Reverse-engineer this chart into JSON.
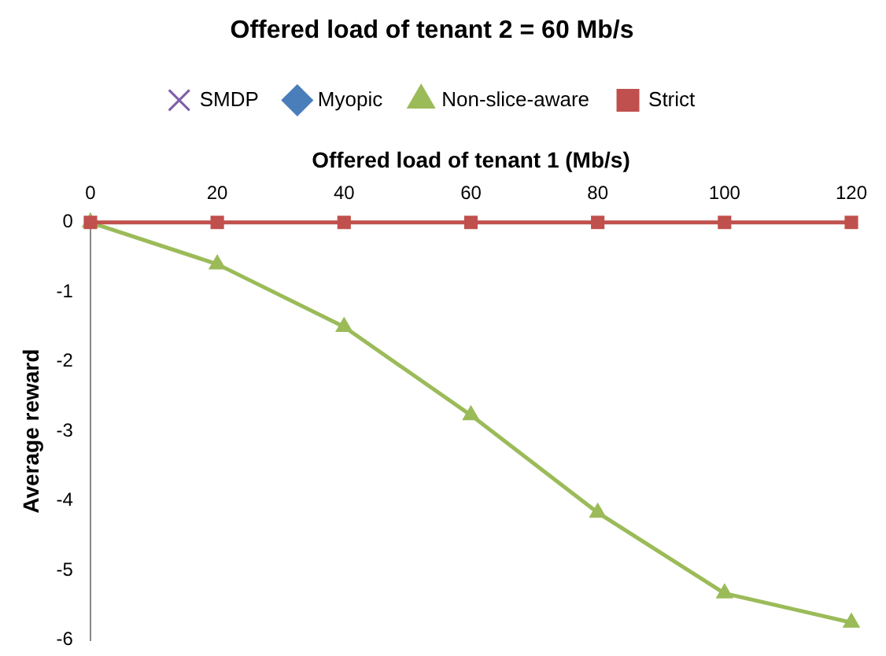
{
  "chart_data": {
    "type": "line",
    "title": "Offered load of tenant 2 = 60 Mb/s",
    "xlabel": "Offered load of tenant 1 (Mb/s)",
    "ylabel": "Average reward",
    "x": [
      0,
      20,
      40,
      60,
      80,
      100,
      120
    ],
    "xlim": [
      0,
      120
    ],
    "xticks": [
      0,
      20,
      40,
      60,
      80,
      100,
      120
    ],
    "ylim": [
      -6,
      0
    ],
    "yticks": [
      -6,
      -5,
      -4,
      -3,
      -2,
      -1,
      0
    ],
    "grid": false,
    "legend": "top",
    "line_style": "solid",
    "series": [
      {
        "name": "SMDP",
        "color": "#7f5fa8",
        "marker": "cross",
        "values": [
          null,
          null,
          null,
          null,
          null,
          null,
          null
        ]
      },
      {
        "name": "Myopic",
        "color": "#4a7ebb",
        "marker": "diamond",
        "values": [
          null,
          null,
          null,
          null,
          null,
          null,
          null
        ]
      },
      {
        "name": "Non-slice-aware",
        "color": "#9bbb59",
        "marker": "triangle",
        "values": [
          0,
          -0.6,
          -1.5,
          -2.77,
          -4.17,
          -5.33,
          -5.75
        ]
      },
      {
        "name": "Strict",
        "color": "#c0504d",
        "marker": "square",
        "values": [
          0,
          0,
          0,
          0,
          0,
          0,
          0
        ]
      }
    ]
  }
}
